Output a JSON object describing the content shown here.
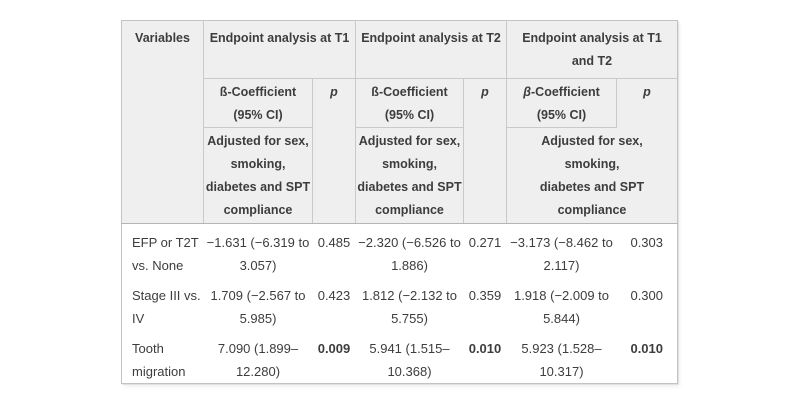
{
  "colors": {
    "header_bg": "#efefef",
    "border": "#c9c9c9",
    "divider": "#b5b5b5",
    "text": "#3d3d3d",
    "body_bg": "#ffffff"
  },
  "table": {
    "header": {
      "variables_label": "Variables",
      "groups": [
        {
          "title": "Endpoint analysis at T1",
          "beta_symbol": "ß",
          "beta_rest": "-Coefficient",
          "ci_label": "(95% CI)",
          "p_label": "p",
          "adjusted_note": "Adjusted for sex,\nsmoking,\ndiabetes and SPT\ncompliance"
        },
        {
          "title": "Endpoint analysis at T2",
          "beta_symbol": "ß",
          "beta_rest": "-Coefficient",
          "ci_label": "(95% CI)",
          "p_label": "p",
          "adjusted_note": "Adjusted for sex,\nsmoking,\ndiabetes and SPT\ncompliance"
        },
        {
          "title": "Endpoint analysis at T1\nand T2",
          "beta_symbol": "β",
          "beta_rest": "-Coefficient",
          "ci_label": "(95% CI)",
          "p_label": "p",
          "adjusted_note": "Adjusted for sex,\nsmoking,\ndiabetes and SPT\ncompliance"
        }
      ]
    },
    "rows": [
      {
        "variable": "EFP or T2T\nvs. None",
        "cells": [
          {
            "beta": "−1.631 (−6.319 to\n3.057)",
            "p": "0.485"
          },
          {
            "beta": "−2.320 (−6.526 to\n1.886)",
            "p": "0.271"
          },
          {
            "beta": "−3.173 (−8.462 to\n2.117)",
            "p": "0.303"
          }
        ]
      },
      {
        "variable": "Stage III vs.\nIV",
        "cells": [
          {
            "beta": "1.709 (−2.567 to\n5.985)",
            "p": "0.423"
          },
          {
            "beta": "1.812 (−2.132 to\n5.755)",
            "p": "0.359"
          },
          {
            "beta": "1.918 (−2.009 to\n5.844)",
            "p": "0.300"
          }
        ]
      },
      {
        "variable": "Tooth\nmigration",
        "cells": [
          {
            "beta": "7.090 (1.899–\n12.280)",
            "p": "0.009"
          },
          {
            "beta": "5.941 (1.515–\n10.368)",
            "p": "0.010"
          },
          {
            "beta": "5.923 (1.528–\n10.317)",
            "p": "0.010"
          }
        ]
      }
    ]
  }
}
